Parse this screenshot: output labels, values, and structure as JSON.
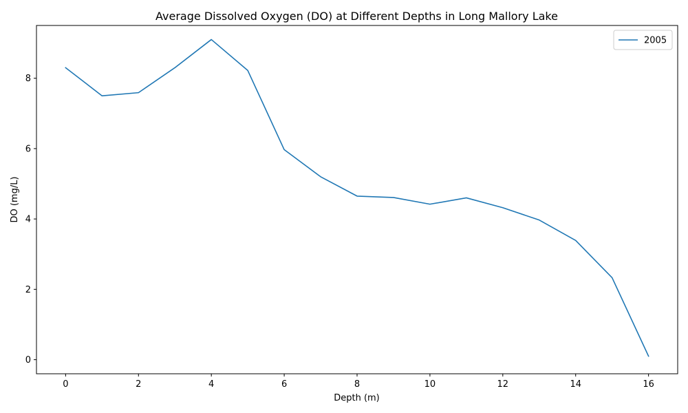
{
  "chart_data": {
    "type": "line",
    "title": "Average Dissolved Oxygen (DO) at Different Depths in Long Mallory Lake",
    "xlabel": "Depth (m)",
    "ylabel": "DO (mg/L)",
    "xlim": [
      -0.8,
      16.8
    ],
    "ylim": [
      -0.4,
      9.5
    ],
    "xticks": [
      0,
      2,
      4,
      6,
      8,
      10,
      12,
      14,
      16
    ],
    "yticks": [
      0,
      2,
      4,
      6,
      8
    ],
    "grid": false,
    "legend_position": "upper-right",
    "series": [
      {
        "name": "2005",
        "color": "#1f77b4",
        "x": [
          0,
          1,
          2,
          3,
          4,
          5,
          6,
          7,
          8,
          9,
          10,
          11,
          12,
          13,
          14,
          15,
          16
        ],
        "y": [
          8.3,
          7.5,
          7.59,
          8.3,
          9.1,
          8.22,
          5.97,
          5.2,
          4.65,
          4.61,
          4.42,
          4.6,
          4.32,
          3.97,
          3.39,
          2.33,
          0.1
        ]
      }
    ]
  }
}
